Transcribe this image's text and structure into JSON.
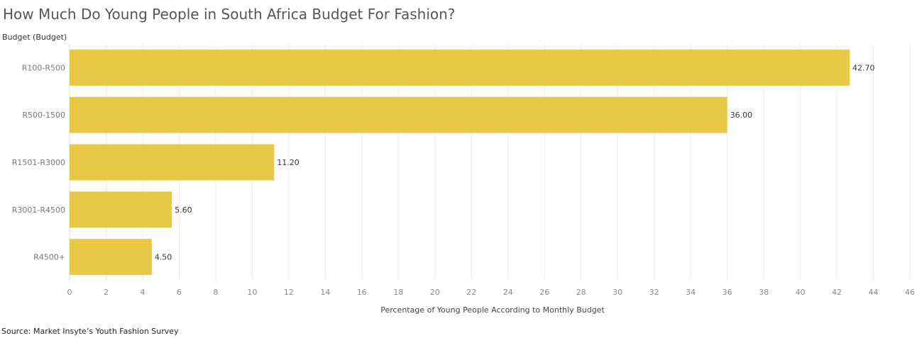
{
  "chart_data": {
    "type": "bar",
    "orientation": "horizontal",
    "title": "How Much Do Young People in South Africa Budget For Fashion?",
    "ylabel": "Budget (Budget)",
    "xlabel": "Percentage of Young People According to Monthly Budget",
    "categories": [
      "R100-R500",
      "R500-1500",
      "R1501-R3000",
      "R3001-R4500",
      "R4500+"
    ],
    "values": [
      42.7,
      36.0,
      11.2,
      5.6,
      4.5
    ],
    "data_labels": [
      "42.70",
      "36.00",
      "11.20",
      "5.60",
      "4.50"
    ],
    "xlim": [
      0,
      46
    ],
    "xticks": [
      0,
      2,
      4,
      6,
      8,
      10,
      12,
      14,
      16,
      18,
      20,
      22,
      24,
      26,
      28,
      30,
      32,
      34,
      36,
      38,
      40,
      42,
      44,
      46
    ],
    "grid": "vertical",
    "bar_color": "#E8C945",
    "source": "Source: Market Insyte’s Youth Fashion Survey"
  }
}
